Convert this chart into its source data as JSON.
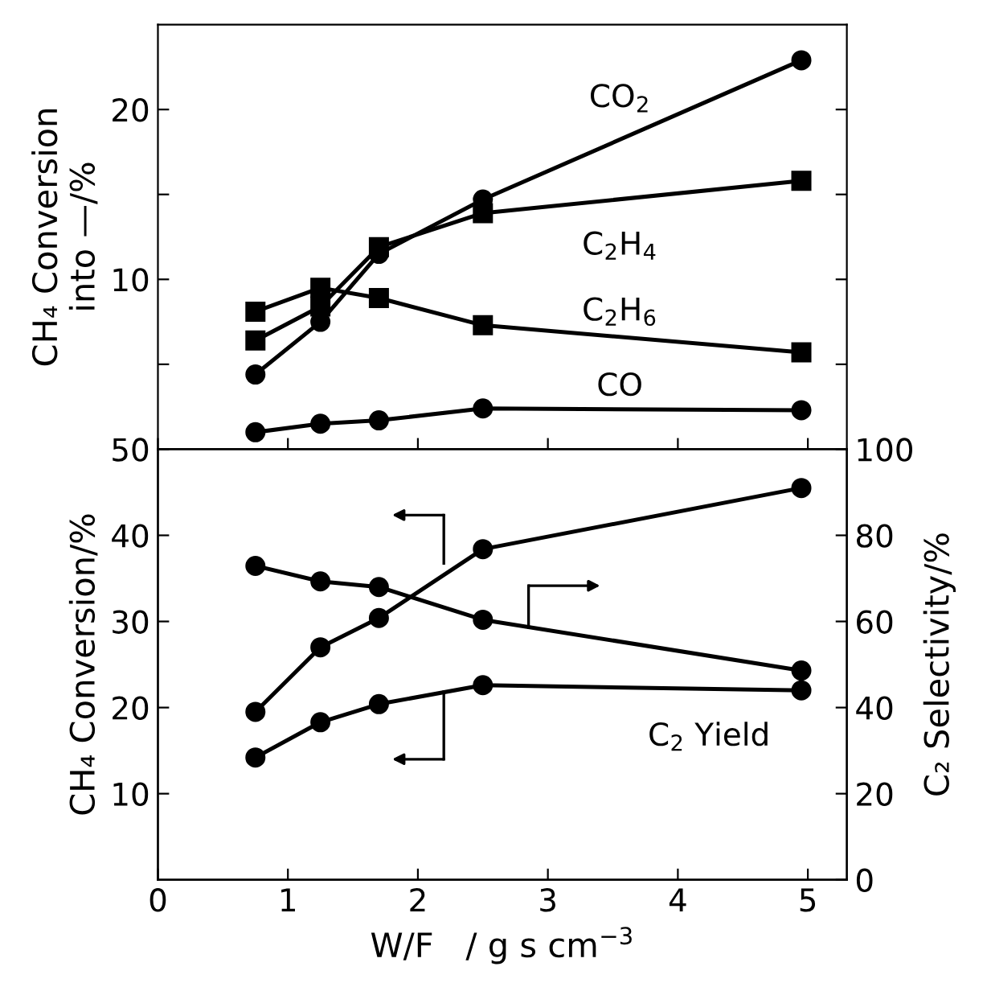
{
  "chart_data": [
    {
      "type": "line",
      "ylabel": "CH₄ Conversion\ninto —/%",
      "x": [
        0.75,
        1.25,
        1.7,
        2.5,
        4.95
      ],
      "xlim": [
        0,
        5.3
      ],
      "xticks": [
        {
          "value": 0,
          "label": null
        },
        {
          "value": 1,
          "label": null
        },
        {
          "value": 2,
          "label": null
        },
        {
          "value": 3,
          "label": null
        },
        {
          "value": 4,
          "label": null
        },
        {
          "value": 5,
          "label": null
        }
      ],
      "ylim": [
        0,
        25
      ],
      "yticks": [
        {
          "value": 0,
          "label": null
        },
        {
          "value": 5,
          "label": null
        },
        10,
        {
          "value": 15,
          "label": null
        },
        20
      ],
      "tick_labels": "y",
      "grid": false,
      "line_style": "solid",
      "series": [
        {
          "name": "CO$_{2}$",
          "color": "#000000",
          "marker": "circle",
          "values": [
            4.4,
            7.5,
            11.5,
            14.7,
            22.9
          ]
        },
        {
          "name": "C$_{2}$H$_{4}$",
          "color": "#000000",
          "marker": "square",
          "values": [
            6.4,
            8.4,
            11.9,
            13.9,
            15.8
          ]
        },
        {
          "name": "C$_{2}$H$_{6}$",
          "color": "#000000",
          "marker": "square",
          "values": [
            8.1,
            9.5,
            8.9,
            7.3,
            5.7
          ]
        },
        {
          "name": "CO",
          "color": "#000000",
          "marker": "circle",
          "values": [
            1.0,
            1.5,
            1.7,
            2.4,
            2.3
          ]
        }
      ]
    },
    {
      "type": "line",
      "xlabel": "W/F   / g s cm$^{−3}$",
      "ylabel": "CH₄ Conversion/%",
      "y2label": "C₂ Selectivity/%",
      "x": [
        0.75,
        1.25,
        1.7,
        2.5,
        4.95
      ],
      "xlim": [
        0,
        5.3
      ],
      "xticks": [
        0,
        1,
        2,
        3,
        4,
        5
      ],
      "ylim": [
        0,
        50
      ],
      "yticks": [
        10,
        20,
        30,
        40,
        50
      ],
      "y2lim": [
        0,
        100
      ],
      "y2ticks": [
        0,
        20,
        40,
        60,
        80,
        100
      ],
      "grid": false,
      "line_style": "solid",
      "series": [
        {
          "color": "#000000",
          "marker": "circle",
          "values": [
            19.5,
            27.0,
            30.4,
            38.4,
            45.5
          ]
        },
        {
          "name": "C$_{2}$ Yield",
          "color": "#000000",
          "marker": "circle",
          "values": [
            14.2,
            18.3,
            20.4,
            22.6,
            22.0
          ]
        },
        {
          "color": "#000000",
          "marker": "circle",
          "axis": "y2",
          "values": [
            72.9,
            69.3,
            68.0,
            60.4,
            48.6
          ]
        }
      ]
    }
  ]
}
